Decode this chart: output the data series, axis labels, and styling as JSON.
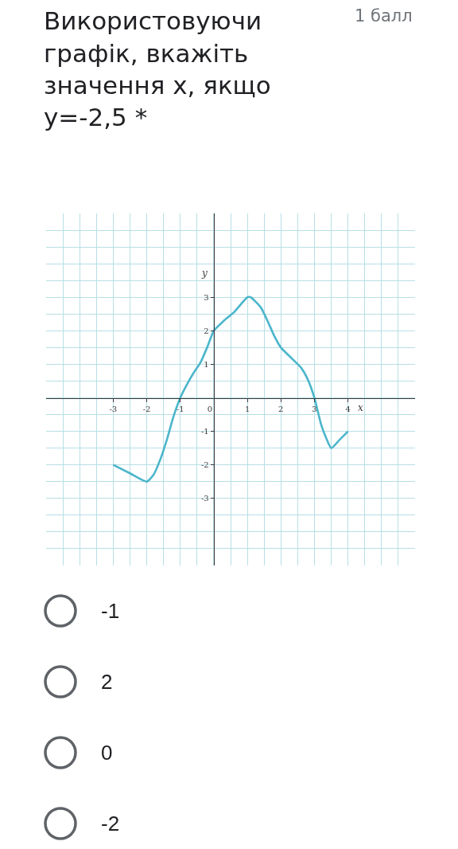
{
  "chart_data": {
    "type": "line",
    "title": "Використовуючи графік, вкажіть значення х, якщо у=-2,5 *",
    "subtitle": "1 балл",
    "xlabel": "x",
    "ylabel": "y",
    "annotations": [
      "-1",
      "2",
      "0",
      "-2"
    ],
    "x": [
      -3,
      -2.5,
      -2,
      -1.8,
      -1.6,
      -1.4,
      -1.2,
      -1,
      -0.8,
      -0.6,
      -0.4,
      -0.2,
      0,
      0.3,
      0.6,
      1,
      1.1,
      1.4,
      1.6,
      1.8,
      2,
      2.3,
      2.6,
      2.8,
      3,
      3.1,
      3.2,
      3.35,
      3.5,
      3.75,
      4
    ],
    "values": [
      -2,
      -2.25,
      -2.5,
      -2.3,
      -1.85,
      -1.25,
      -0.55,
      0,
      0.4,
      0.75,
      1.05,
      1.5,
      2,
      2.3,
      2.55,
      3,
      3,
      2.7,
      2.3,
      1.85,
      1.5,
      1.2,
      0.9,
      0.55,
      0,
      -0.4,
      -0.8,
      -1.2,
      -1.5,
      -1.25,
      -1
    ],
    "color": "#4bb6cb",
    "line_style": "solid",
    "xlim": [
      -5,
      6
    ],
    "ylim": [
      -5,
      5.5
    ],
    "xticks": [
      -3,
      -2,
      -1,
      0,
      1,
      2,
      3,
      4
    ],
    "yticks": [
      -3,
      -2,
      -1,
      1,
      2,
      3
    ],
    "grid": true
  }
}
